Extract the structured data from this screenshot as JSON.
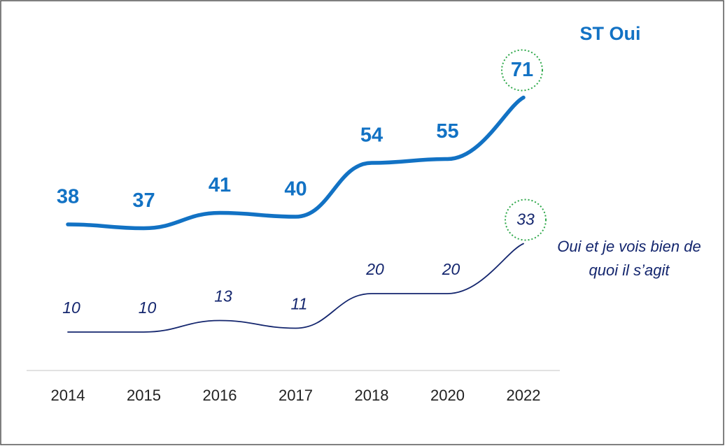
{
  "chart_data": {
    "type": "line",
    "categories": [
      "2014",
      "2015",
      "2016",
      "2017",
      "2018",
      "2020",
      "2022"
    ],
    "series": [
      {
        "name": "ST Oui",
        "color": "#1272c4",
        "values": [
          38,
          37,
          41,
          40,
          54,
          55,
          71
        ]
      },
      {
        "name": "Oui et je vois bien de quoi il s’agit",
        "color": "#14266e",
        "values": [
          10,
          10,
          13,
          11,
          20,
          20,
          33
        ]
      }
    ],
    "ylim": [
      0,
      90
    ]
  }
}
